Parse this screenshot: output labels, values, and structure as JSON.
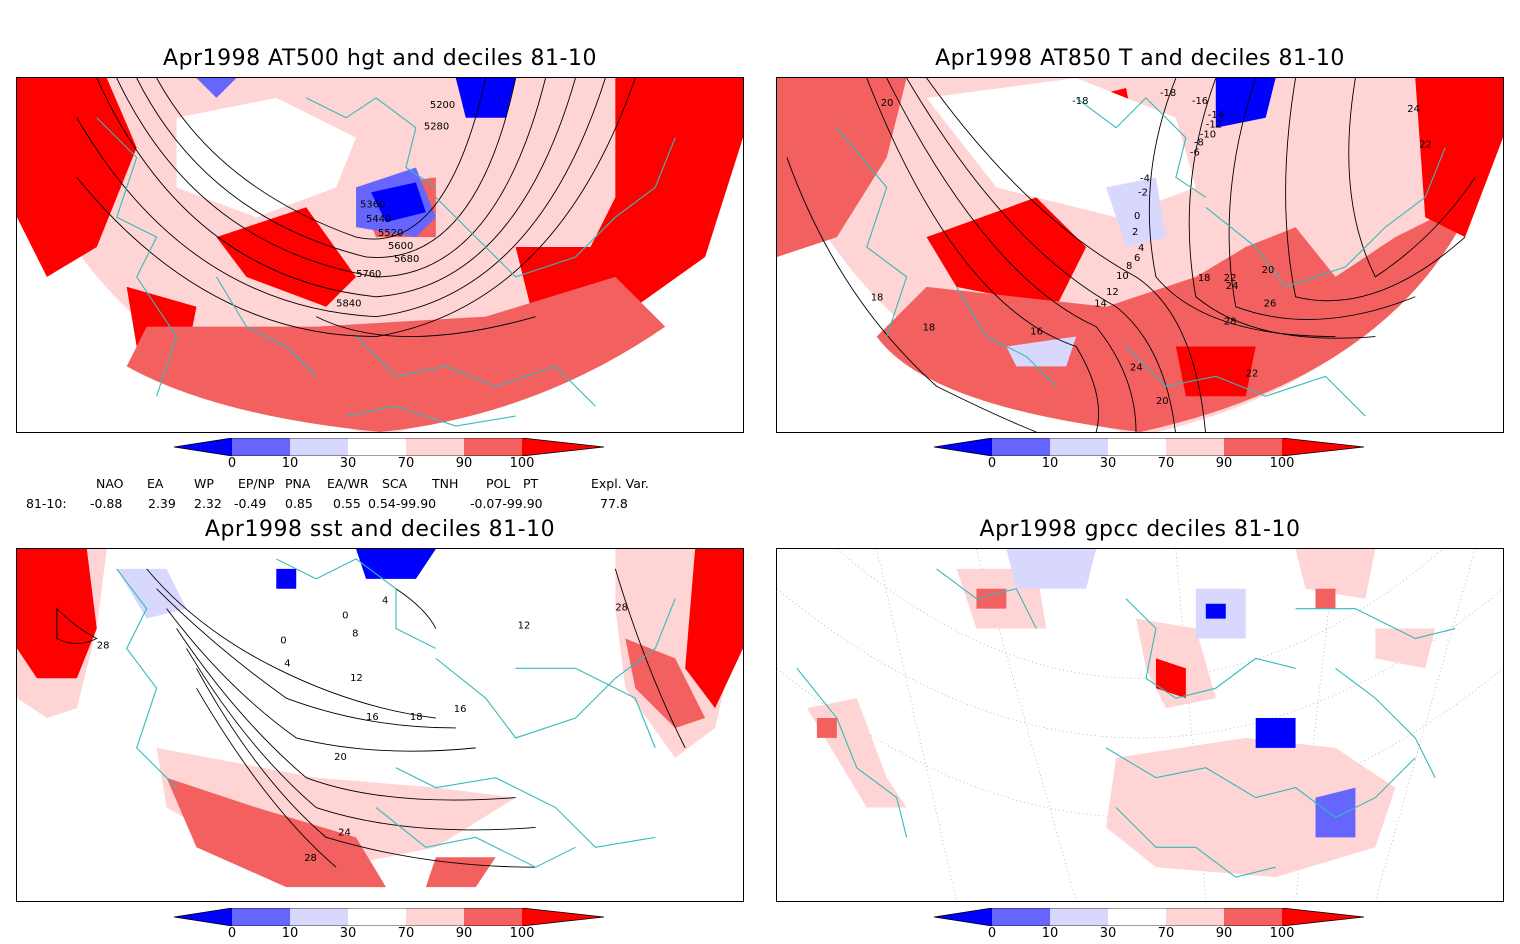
{
  "panels": {
    "p1": {
      "title": "Apr1998 AT500 hgt and deciles 81-10",
      "contour_labels": [
        "5200",
        "5280",
        "5360",
        "5440",
        "5520",
        "5600",
        "5680",
        "5760",
        "5840"
      ]
    },
    "p2": {
      "title": "Apr1998 AT850 T and deciles 81-10",
      "contour_labels": [
        "-18",
        "-16",
        "-14",
        "-12",
        "-10",
        "-8",
        "-6",
        "-4",
        "-2",
        "0",
        "2",
        "4",
        "6",
        "8",
        "10",
        "12",
        "14",
        "16",
        "18",
        "18",
        "18",
        "20",
        "20",
        "22",
        "22",
        "24",
        "24",
        "26",
        "28",
        "20",
        "22",
        "24"
      ]
    },
    "p3": {
      "title": "Apr1998 sst and deciles 81-10",
      "contour_labels": [
        "28",
        "0",
        "4",
        "8",
        "0",
        "4",
        "12",
        "16",
        "18",
        "16",
        "20",
        "24",
        "28",
        "28",
        "12"
      ]
    },
    "p4": {
      "title": "Apr1998 gpcc deciles 81-10",
      "contour_labels": []
    }
  },
  "colorbar": {
    "labels": [
      "0",
      "10",
      "30",
      "70",
      "90",
      "100"
    ],
    "colors": [
      "#0000ff",
      "#6666ff",
      "#d8d8ff",
      "#ffffff",
      "#ffd4d4",
      "#f26060",
      "#ff0000"
    ]
  },
  "indices": {
    "headers": [
      "NAO",
      "EA",
      "WP",
      "EP/NP",
      "PNA",
      "EA/WR",
      "SCA",
      "TNH",
      "POL",
      "PT",
      "Expl. Var."
    ],
    "row_label": "81-10:",
    "values": [
      "-0.88",
      "2.39",
      "2.32",
      "-0.49",
      "0.85",
      "0.55",
      "0.54-99.90",
      "-0.07-99.90",
      "77.8"
    ]
  },
  "colors": {
    "coastline": "#33bbbb",
    "contour": "#000000",
    "frame": "#000000"
  }
}
